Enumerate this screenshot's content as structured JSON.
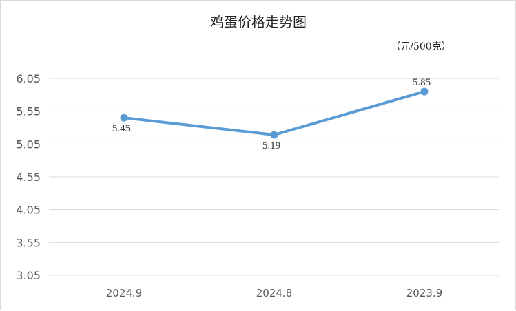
{
  "chart_data": {
    "type": "line",
    "title": "鸡蛋价格走势图",
    "unit_label": "（元/500克）",
    "categories": [
      "2024.9",
      "2024.8",
      "2023.9"
    ],
    "values": [
      5.45,
      5.19,
      5.85
    ],
    "data_labels": [
      "5.45",
      "5.19",
      "5.85"
    ],
    "y_ticks": [
      "3.05",
      "3.55",
      "4.05",
      "4.55",
      "5.05",
      "5.55",
      "6.05"
    ],
    "ylim": [
      3.05,
      6.05
    ],
    "grid": true,
    "legend": "none",
    "colors": {
      "series": "#5b9bd5",
      "grid": "#d9d9d9"
    }
  }
}
